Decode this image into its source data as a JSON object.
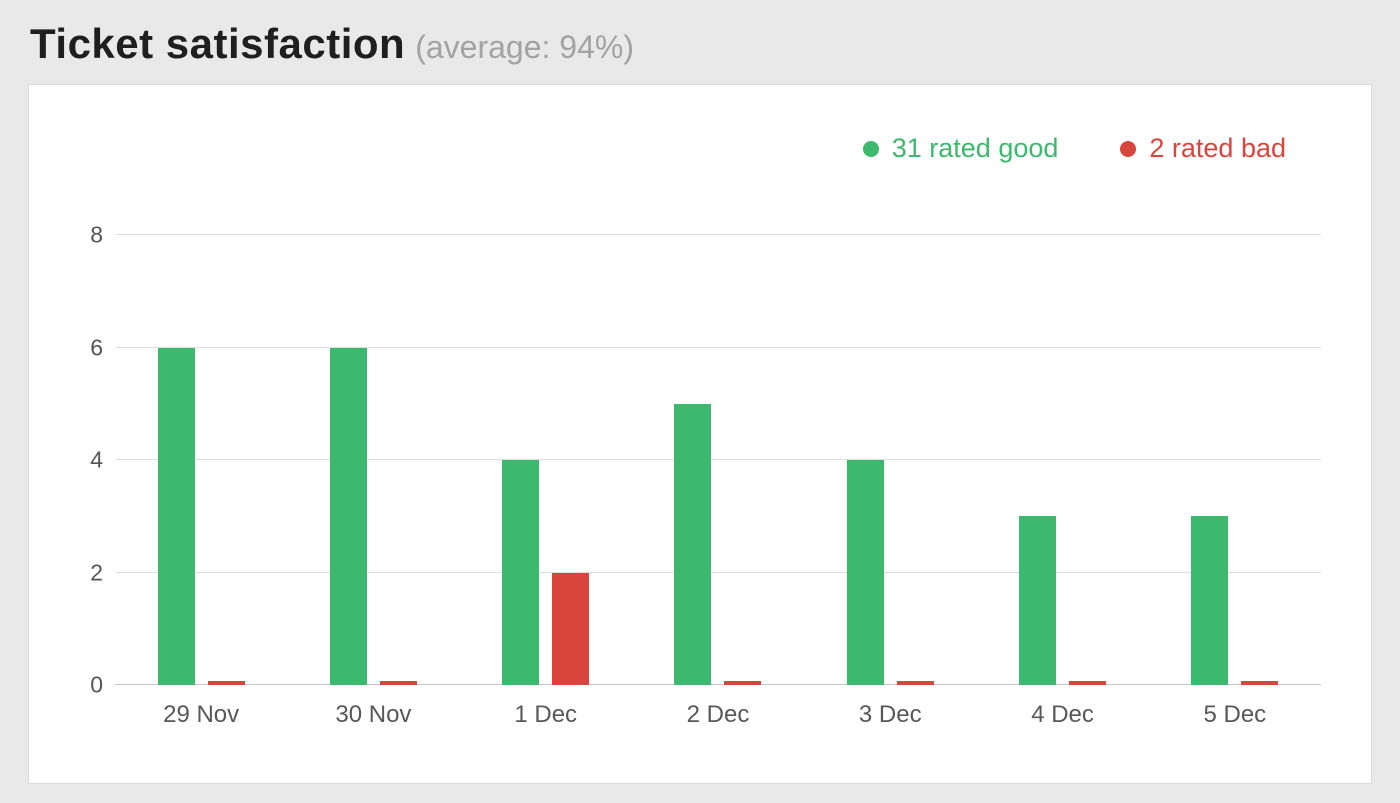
{
  "page": {
    "title": "Ticket satisfaction",
    "subtitle": "(average: 94%)"
  },
  "legend": {
    "good": {
      "label": "31 rated good",
      "color": "#3cb96e"
    },
    "bad": {
      "label": "2 rated bad",
      "color": "#d9453d"
    }
  },
  "chart_data": {
    "type": "bar",
    "title": "Ticket satisfaction",
    "subtitle_note": "(average: 94%)",
    "categories": [
      "29 Nov",
      "30 Nov",
      "1 Dec",
      "2 Dec",
      "3 Dec",
      "4 Dec",
      "5 Dec"
    ],
    "series": [
      {
        "name": "31 rated good",
        "color": "#3cb96e",
        "values": [
          6,
          6,
          4,
          5,
          4,
          3,
          3
        ]
      },
      {
        "name": "2 rated bad",
        "color": "#d9453d",
        "values": [
          0,
          0,
          2,
          0,
          0,
          0,
          0
        ]
      }
    ],
    "xlabel": "",
    "ylabel": "",
    "yticks": [
      0,
      2,
      4,
      6,
      8
    ],
    "ylim": [
      0,
      8
    ],
    "grid": true,
    "legend_position": "top-right"
  }
}
